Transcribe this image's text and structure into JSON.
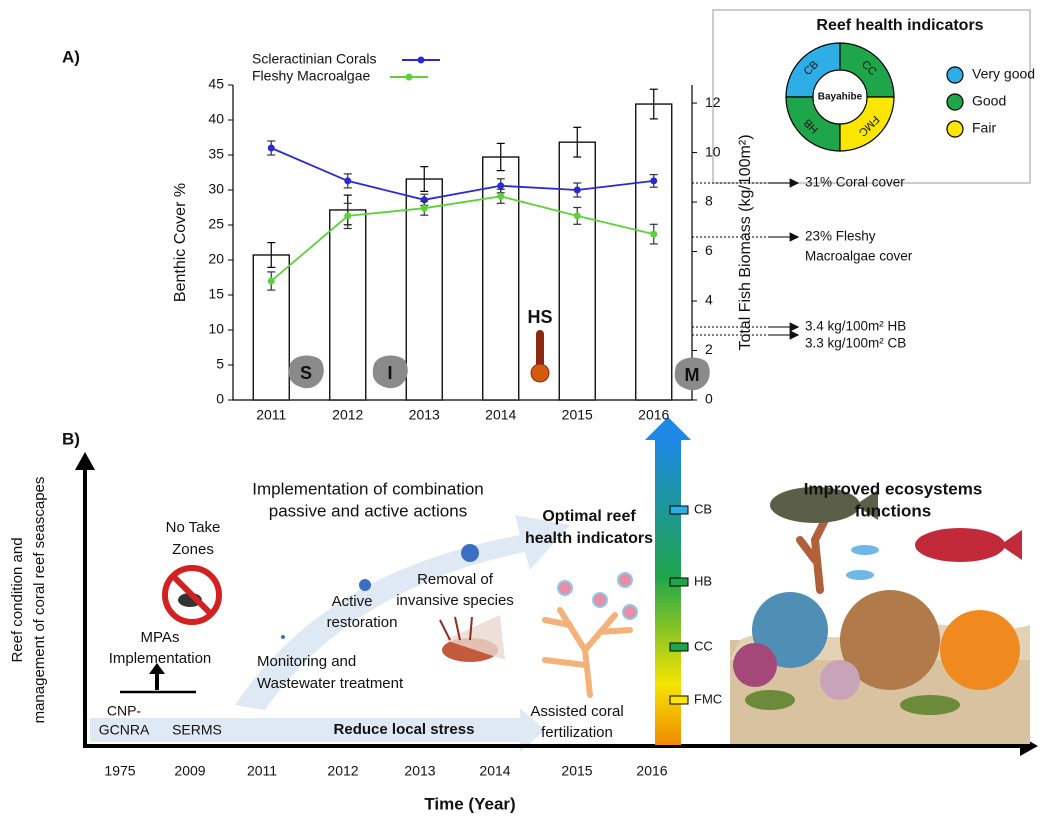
{
  "chart_data": {
    "type": "bar",
    "panel_label": "A)",
    "categories": [
      "2011",
      "2012",
      "2013",
      "2014",
      "2015",
      "2016"
    ],
    "ylabel": "Benthic Cover %",
    "y2label": "Total Fish Biomass (kg/100m²)",
    "ylim": [
      0,
      45
    ],
    "yticks": [
      0,
      5,
      10,
      15,
      20,
      25,
      30,
      35,
      40,
      45
    ],
    "y2lim": [
      0,
      12.73
    ],
    "y2ticks": [
      0,
      2,
      4,
      6,
      8,
      10,
      12
    ],
    "bars": {
      "axis": "y2",
      "color": "#ffffff",
      "values": [
        5.86,
        7.68,
        8.93,
        9.82,
        10.42,
        11.96
      ],
      "errors": [
        0.5,
        0.6,
        0.5,
        0.55,
        0.6,
        0.6
      ]
    },
    "series": [
      {
        "name": "Scleractinian Corals",
        "type": "line",
        "color": "#2a2ad4",
        "values": [
          36,
          31.3,
          28.6,
          30.6,
          30,
          31.3
        ],
        "errors": [
          1,
          1,
          0.8,
          1,
          1,
          0.9
        ]
      },
      {
        "name": "Fleshy Macroalgae",
        "type": "line",
        "color": "#5cd13a",
        "values": [
          17,
          26.3,
          27.4,
          29.1,
          26.3,
          23.7
        ],
        "errors": [
          1.3,
          1.8,
          1,
          1,
          1.2,
          1.4
        ]
      }
    ],
    "annotations": [
      [
        "31% Coral cover"
      ],
      [
        "23% Fleshy",
        "Macroalgae cover"
      ],
      [
        "3.4 kg/100m² HB"
      ],
      [
        "3.3 kg/100m² CB"
      ]
    ],
    "event_labels": [
      "S",
      "I",
      "HS",
      "M"
    ],
    "inset": {
      "title": "Reef health indicators",
      "center": "Bayahibe",
      "segments": [
        {
          "label": "CB",
          "color": "#2eaee6"
        },
        {
          "label": "CC",
          "color": "#1fa64b"
        },
        {
          "label": "HB",
          "color": "#1fa64b"
        },
        {
          "label": "FMC",
          "color": "#fbe600"
        }
      ],
      "legend": [
        {
          "name": "Very good",
          "color": "#2eaee6"
        },
        {
          "name": "Good",
          "color": "#1fa64b"
        },
        {
          "name": "Fair",
          "color": "#fbe600"
        }
      ]
    }
  },
  "diagram": {
    "panel_label": "B)",
    "y_axis_title": [
      "Reef condition and",
      "management of coral reef seascapes"
    ],
    "x_axis_title": "Time (Year)",
    "x_labels": [
      "1975",
      "2009",
      "2011",
      "2012",
      "2013",
      "2014",
      "2015",
      "2016"
    ],
    "no_take": [
      "No Take",
      "Zones"
    ],
    "mpas": [
      "MPAs",
      "Implementation"
    ],
    "cnp": [
      "CNP-",
      "GCNRA"
    ],
    "serms": "SERMS",
    "reduce": "Reduce local stress",
    "combination": [
      "Implementation of combination",
      "passive and active actions"
    ],
    "monitoring": [
      "Monitoring and",
      "Wastewater treatment"
    ],
    "active": [
      "Active",
      "restoration"
    ],
    "removal": [
      "Removal  of",
      "invansive species"
    ],
    "optimal": [
      "Optimal reef",
      "health indicators"
    ],
    "assisted": [
      "Assisted coral",
      "fertilization"
    ],
    "indicator_bar": [
      "CB",
      "HB",
      "CC",
      "FMC"
    ],
    "improved": [
      "Improved ecosystems",
      "functions"
    ]
  }
}
